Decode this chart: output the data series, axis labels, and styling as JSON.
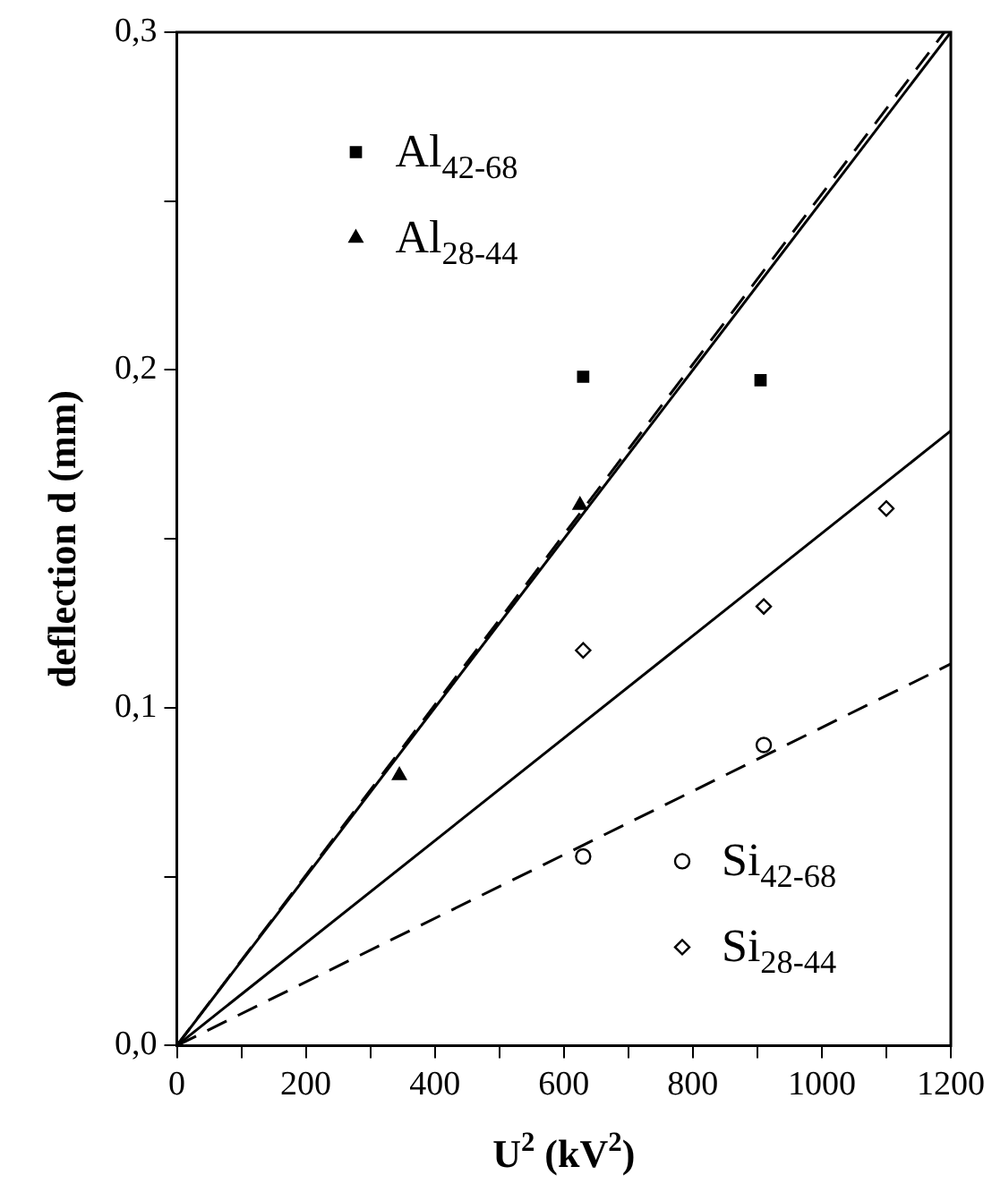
{
  "chart_data": {
    "type": "scatter",
    "xlabel": "U$^{2}$ (kV$^{2}$)",
    "ylabel": "deflection d (mm)",
    "xlim": [
      0,
      1200
    ],
    "ylim": [
      0,
      0.3
    ],
    "xticks": [
      0,
      {
        "value": 100,
        "label": null
      },
      200,
      {
        "value": 300,
        "label": null
      },
      400,
      {
        "value": 500,
        "label": null
      },
      600,
      {
        "value": 700,
        "label": null
      },
      800,
      {
        "value": 900,
        "label": null
      },
      1000,
      {
        "value": 1100,
        "label": null
      },
      1200
    ],
    "yticks": [
      {
        "value": 0,
        "label": "0,0"
      },
      {
        "value": 0.05,
        "label": null
      },
      {
        "value": 0.1,
        "label": "0,1"
      },
      {
        "value": 0.15,
        "label": null
      },
      {
        "value": 0.2,
        "label": "0,2"
      },
      {
        "value": 0.25,
        "label": null
      },
      {
        "value": 0.3,
        "label": "0,3"
      }
    ],
    "grid": false,
    "legend": "center",
    "series": [
      {
        "name": "Al$_{42-68}$",
        "color": "#000000",
        "marker": "square",
        "x": [
          630,
          905
        ],
        "values": [
          0.198,
          0.197
        ]
      },
      {
        "name": "Al$_{28-44}$",
        "color": "#000000",
        "marker": "triangle",
        "x": [
          345,
          625
        ],
        "values": [
          0.08,
          0.16
        ]
      },
      {
        "name": "Si$_{42-68}$",
        "color": "#000000",
        "marker": "circle",
        "x": [
          630,
          910
        ],
        "values": [
          0.056,
          0.089
        ]
      },
      {
        "name": "Si$_{28-44}$",
        "color": "#000000",
        "marker": "diamond",
        "x": [
          630,
          910,
          1100
        ],
        "values": [
          0.117,
          0.13,
          0.159
        ]
      },
      {
        "type": "line",
        "color": "#000000",
        "line_style": "solid",
        "marker": "none",
        "x": [
          0,
          1200
        ],
        "values": [
          0,
          0.3
        ]
      },
      {
        "type": "line",
        "color": "#000000",
        "line_style": "dashed",
        "marker": "none",
        "x": [
          0,
          1190
        ],
        "values": [
          0,
          0.3
        ]
      },
      {
        "type": "line",
        "color": "#000000",
        "line_style": "solid",
        "marker": "none",
        "x": [
          0,
          1200
        ],
        "values": [
          0,
          0.182
        ]
      },
      {
        "type": "line",
        "color": "#000000",
        "line_style": "dashed",
        "marker": "none",
        "x": [
          0,
          1200
        ],
        "values": [
          0,
          0.113
        ]
      }
    ]
  }
}
